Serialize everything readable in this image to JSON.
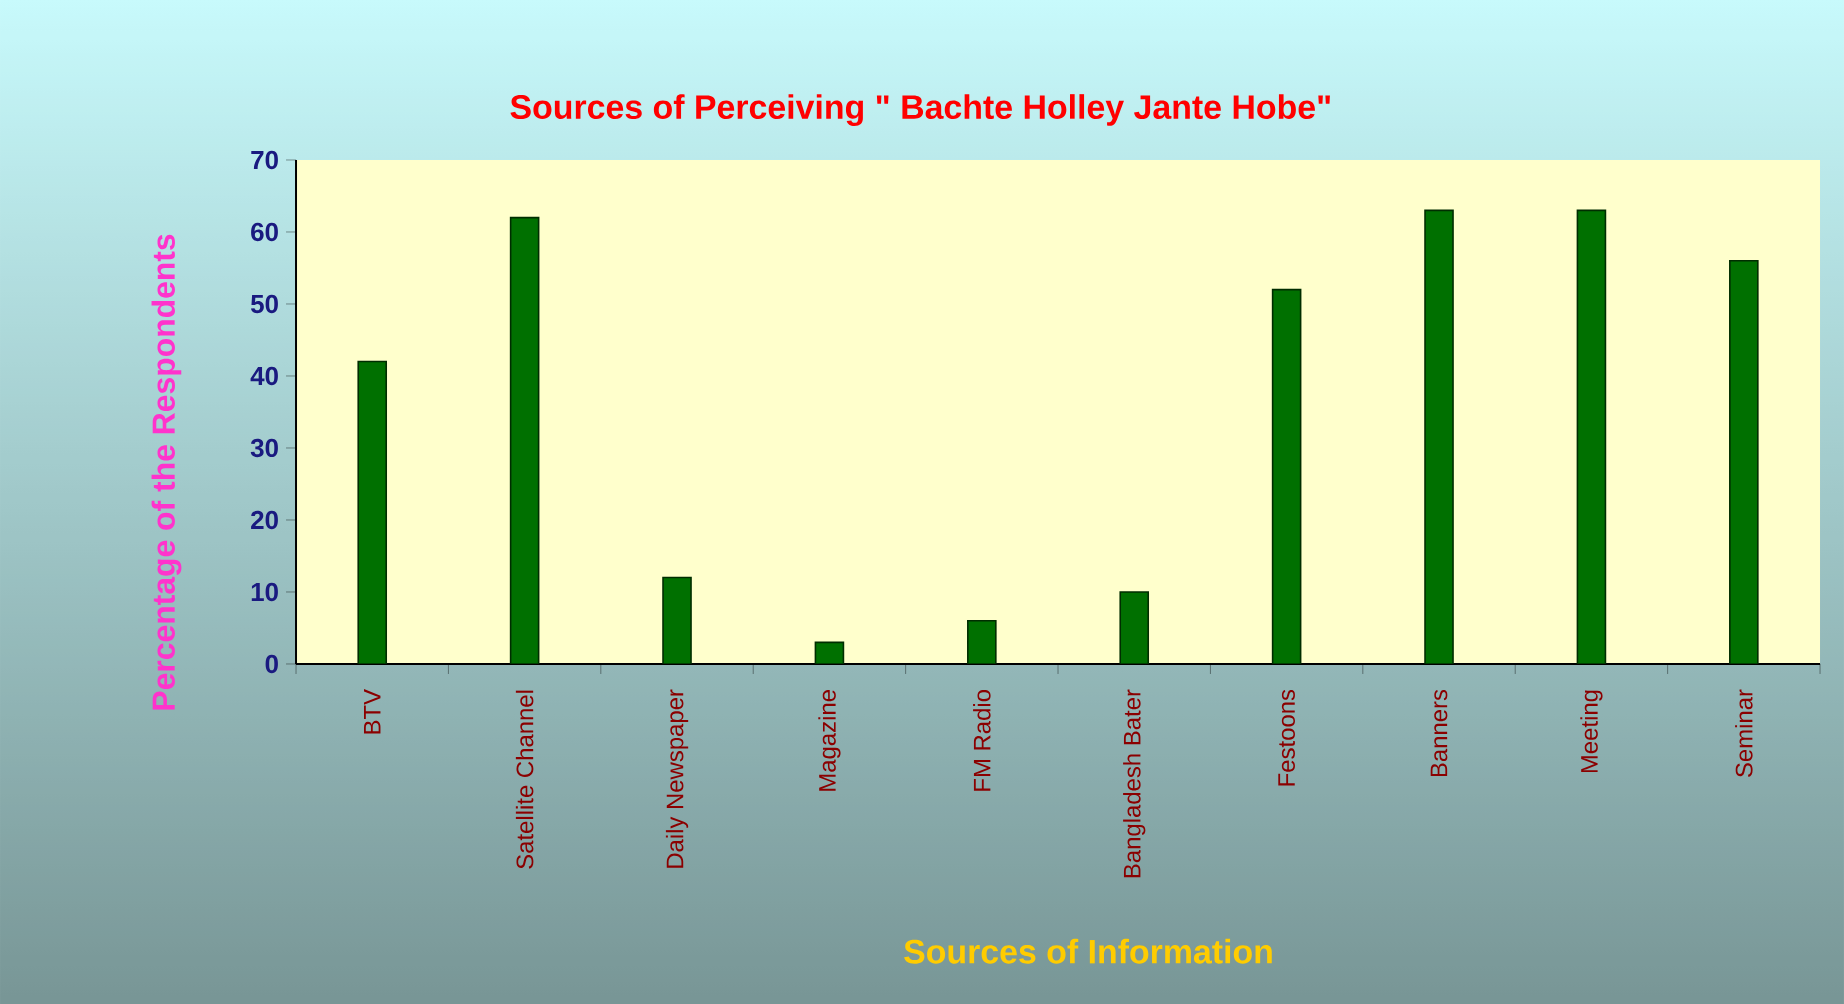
{
  "chart_data": {
    "type": "bar",
    "title": "Sources of Perceiving \" Bachte Holley Jante Hobe\"",
    "xlabel": "Sources of Information",
    "ylabel": "Percentage of the Respondents",
    "categories": [
      "BTV",
      "Satellite Channel",
      "Daily Newspaper",
      "Magazine",
      "FM Radio",
      "Bangladesh Bater",
      "Festoons",
      "Banners",
      "Meeting",
      "Seminar"
    ],
    "values": [
      42,
      62,
      12,
      3,
      6,
      10,
      52,
      63,
      63,
      56
    ],
    "color": "#007000",
    "ylim": [
      0,
      70
    ],
    "yticks": [
      0,
      10,
      20,
      30,
      40,
      50,
      60,
      70
    ],
    "grid": false
  }
}
